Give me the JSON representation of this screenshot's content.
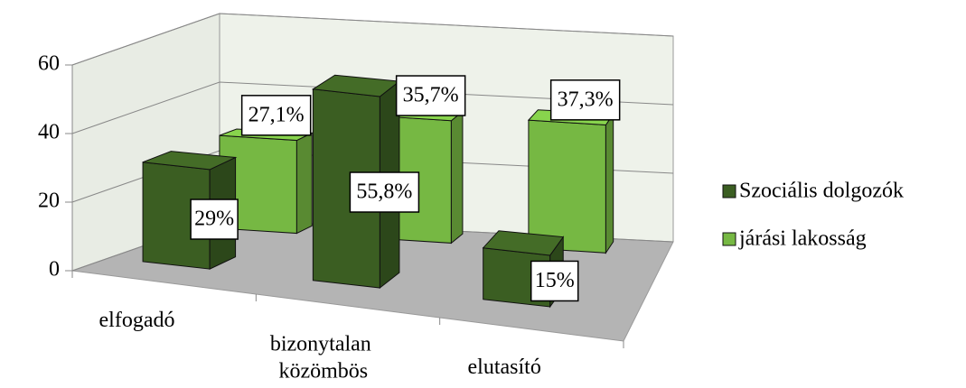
{
  "chart_data": {
    "type": "bar3d",
    "categories": [
      "elfogadó",
      "bizonytalan közömbös",
      "elutasító"
    ],
    "series": [
      {
        "name": "Szociális dolgozók",
        "color": "#3b5e22",
        "values": [
          29,
          55.8,
          15
        ],
        "value_labels": [
          "29%",
          "55,8%",
          "15%"
        ]
      },
      {
        "name": "járási lakosság",
        "color": "#76b843",
        "values": [
          27.1,
          35.7,
          37.3
        ],
        "value_labels": [
          "27,1%",
          "35,7%",
          "37,3%"
        ]
      }
    ],
    "ylim": [
      0,
      60
    ],
    "yticks": [
      0,
      20,
      40,
      60
    ],
    "grid": true,
    "legend": "right"
  }
}
